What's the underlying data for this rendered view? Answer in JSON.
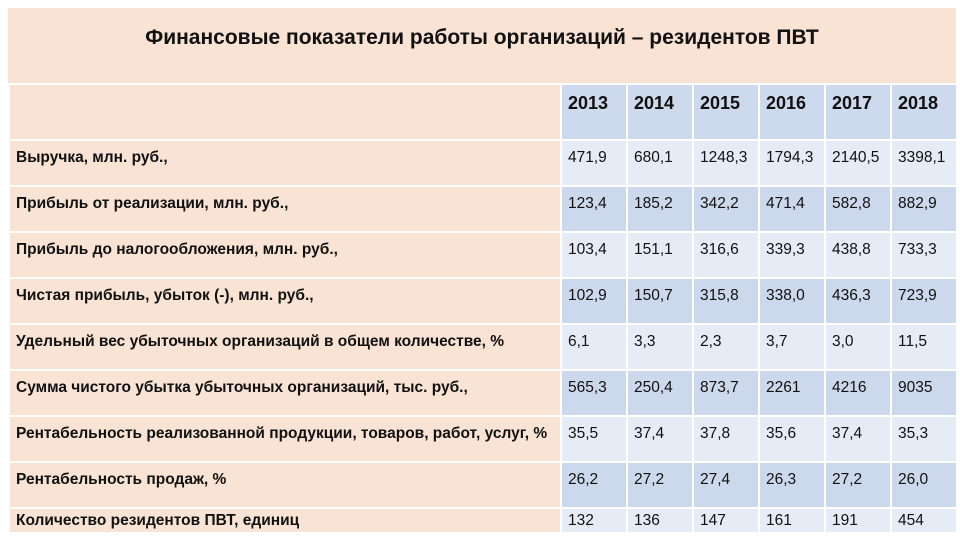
{
  "title": "Финансовые показатели работы организаций – резидентов ПВТ",
  "years": [
    "2013",
    "2014",
    "2015",
    "2016",
    "2017",
    "2018"
  ],
  "rows": [
    {
      "label": "Выручка, млн. руб.,",
      "values": [
        "471,9",
        "680,1",
        "1248,3",
        "1794,3",
        "2140,5",
        "3398,1"
      ]
    },
    {
      "label": "Прибыль от реализации, млн. руб.,",
      "values": [
        "123,4",
        "185,2",
        "342,2",
        "471,4",
        "582,8",
        "882,9"
      ]
    },
    {
      "label": "Прибыль до налогообложения, млн. руб.,",
      "values": [
        "103,4",
        "151,1",
        "316,6",
        "339,3",
        "438,8",
        "733,3"
      ]
    },
    {
      "label": "Чистая прибыль, убыток (-), млн. руб.,",
      "values": [
        "102,9",
        "150,7",
        "315,8",
        "338,0",
        "436,3",
        "723,9"
      ]
    },
    {
      "label": "Удельный вес убыточных организаций в общем количестве, %",
      "values": [
        "6,1",
        "3,3",
        "2,3",
        "3,7",
        "3,0",
        "11,5"
      ]
    },
    {
      "label": "Сумма чистого убытка убыточных организаций, тыс. руб.,",
      "values": [
        "565,3",
        "250,4",
        "873,7",
        "2261",
        "4216",
        "9035"
      ]
    },
    {
      "label": "Рентабельность реализованной продукции, товаров, работ, услуг, %",
      "values": [
        "35,5",
        "37,4",
        "37,8",
        "35,6",
        "37,4",
        "35,3"
      ]
    },
    {
      "label": "Рентабельность продаж, %",
      "values": [
        "26,2",
        "27,2",
        "27,4",
        "26,3",
        "27,2",
        "26,0"
      ]
    },
    {
      "label": "Количество резидентов ПВТ, единиц",
      "values": [
        "132",
        "136",
        "147",
        "161",
        "191",
        "454"
      ]
    }
  ],
  "colors": {
    "label_bg": "#f9e3d5",
    "header_bg": "#cdd9ec",
    "cell_light": "#e5ecf6",
    "cell_dark": "#ccd8eb"
  }
}
